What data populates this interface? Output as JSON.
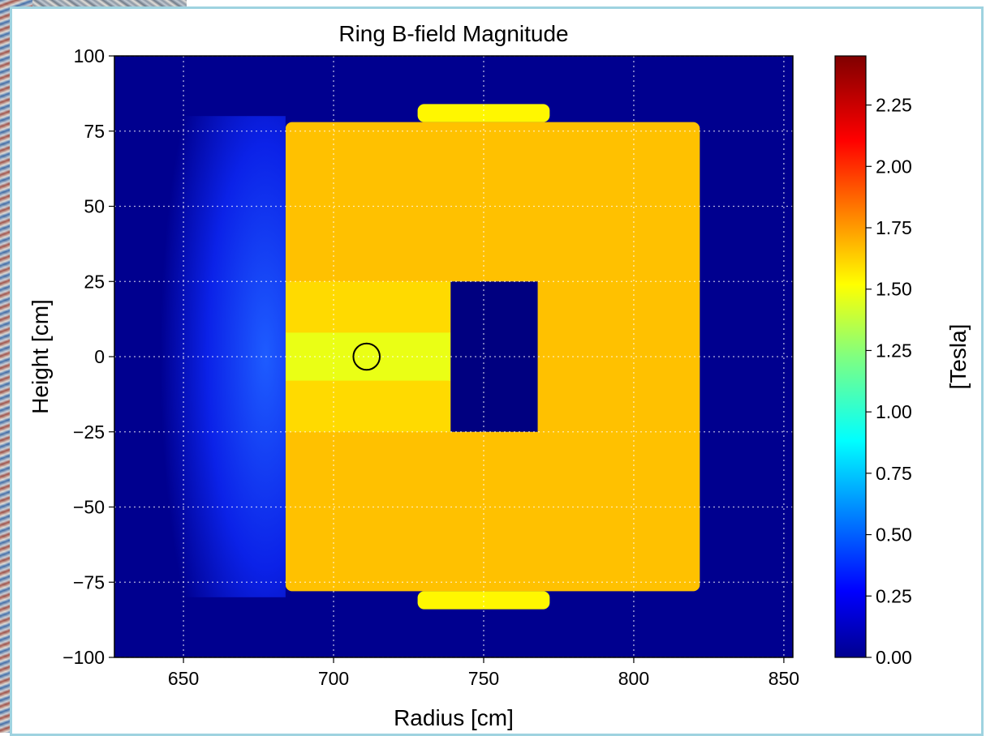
{
  "chart_data": {
    "type": "heatmap",
    "title": "Ring B-field Magnitude",
    "xlabel": "Radius [cm]",
    "ylabel": "Height [cm]",
    "colorbar_label": "[Tesla]",
    "colormap": "jet",
    "xlim": [
      627,
      853
    ],
    "ylim": [
      -100,
      100
    ],
    "clim": [
      0,
      2.45
    ],
    "x_ticks": [
      650,
      700,
      750,
      800,
      850
    ],
    "x_tick_labels": [
      "650",
      "700",
      "750",
      "800",
      "850"
    ],
    "y_ticks": [
      100,
      75,
      50,
      25,
      0,
      -25,
      -50,
      -75,
      -100
    ],
    "y_tick_labels": [
      "100",
      "75",
      "50",
      "25",
      "0",
      "−25",
      "−50",
      "−75",
      "−100"
    ],
    "colorbar_ticks": [
      0,
      0.25,
      0.5,
      0.75,
      1.0,
      1.25,
      1.5,
      1.75,
      2.0,
      2.25
    ],
    "colorbar_tick_labels": [
      "0.00",
      "0.25",
      "0.50",
      "0.75",
      "1.00",
      "1.25",
      "1.50",
      "1.75",
      "2.00",
      "2.25"
    ],
    "grid": true,
    "regions": [
      {
        "name": "yoke-outer",
        "x": [
          684,
          822
        ],
        "y": [
          -78,
          78
        ],
        "value": 1.68
      },
      {
        "name": "yoke-top-cap",
        "x": [
          728,
          772
        ],
        "y": [
          78,
          84
        ],
        "value": 1.55
      },
      {
        "name": "yoke-bottom-cap",
        "x": [
          728,
          772
        ],
        "y": [
          -84,
          -78
        ],
        "value": 1.55
      },
      {
        "name": "pole-top",
        "x": [
          684,
          739
        ],
        "y": [
          8,
          25
        ],
        "value": 1.62
      },
      {
        "name": "pole-bottom",
        "x": [
          684,
          739
        ],
        "y": [
          -25,
          -8
        ],
        "value": 1.62
      },
      {
        "name": "pole-gap",
        "x": [
          684,
          739
        ],
        "y": [
          -8,
          8
        ],
        "value": 1.48
      },
      {
        "name": "coil-cavity",
        "x": [
          739,
          768
        ],
        "y": [
          -25,
          25
        ],
        "value": 0.0
      },
      {
        "name": "fringe-left",
        "x": [
          640,
          684
        ],
        "y": [
          -80,
          80
        ],
        "value": 0.45
      }
    ],
    "annotations": [
      {
        "name": "beam-center-circle",
        "x": 711,
        "y": 0,
        "radius": 4.4
      }
    ]
  }
}
